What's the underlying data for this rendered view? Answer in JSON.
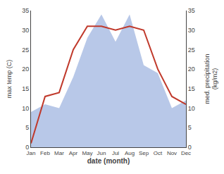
{
  "chart_data": {
    "type": "line",
    "xlabel": "date (month)",
    "ylabel": "max temp (C)",
    "y2label": "med. precipitation\n(kg/m2)",
    "categories": [
      "Jan",
      "Feb",
      "Mar",
      "Apr",
      "May",
      "Jun",
      "Jul",
      "Aug",
      "Sep",
      "Oct",
      "Nov",
      "Dec"
    ],
    "series": [
      {
        "type": "area",
        "axis": "y2",
        "color": "#b8c8e8",
        "values": [
          9,
          11,
          10,
          18,
          28,
          34,
          27,
          34,
          21,
          19,
          10,
          12
        ]
      },
      {
        "type": "line",
        "color": "#c0392b",
        "values": [
          1,
          13,
          14,
          25,
          31,
          31,
          30,
          31,
          30,
          20,
          13,
          11
        ]
      }
    ],
    "ylim": [
      0,
      35
    ],
    "yticks": [
      0,
      5,
      10,
      15,
      20,
      25,
      30,
      35
    ],
    "y2lim": [
      0,
      35
    ],
    "y2ticks": [
      0,
      5,
      10,
      15,
      20,
      25,
      30,
      35
    ],
    "grid": false
  }
}
